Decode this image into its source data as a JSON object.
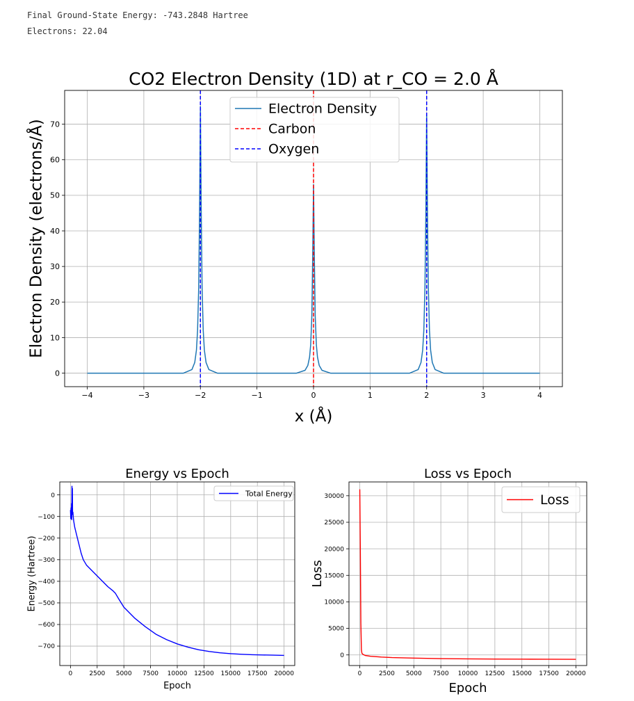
{
  "output": {
    "energy_line": "Final Ground-State Energy: -743.2848 Hartree",
    "electrons_line": "Electrons: 22.04"
  },
  "colors": {
    "density": "#1f77b4",
    "carbon": "#ff0000",
    "oxygen": "#0000ff",
    "energy": "#0000ff",
    "loss": "#ff0000",
    "grid": "#b0b0b0"
  },
  "chart_data": [
    {
      "type": "line",
      "title": "CO2 Electron Density (1D) at r_CO = 2.0 Å",
      "xlabel": "x (Å)",
      "ylabel": "Electron Density (electrons/Å)",
      "xlim": [
        -4.4,
        4.4
      ],
      "ylim": [
        -3.8,
        79.5
      ],
      "xticks": [
        -4,
        -3,
        -2,
        -1,
        0,
        1,
        2,
        3,
        4
      ],
      "xtick_labels": [
        "−4",
        "−3",
        "−2",
        "−1",
        "0",
        "1",
        "2",
        "3",
        "4"
      ],
      "yticks": [
        0,
        10,
        20,
        30,
        40,
        50,
        60,
        70
      ],
      "ytick_labels": [
        "0",
        "10",
        "20",
        "30",
        "40",
        "50",
        "60",
        "70"
      ],
      "grid": true,
      "legend_position": "upper-center",
      "series": [
        {
          "name": "Electron Density",
          "style": "solid",
          "x": [
            -4,
            -2.3,
            -2.15,
            -2.1,
            -2.07,
            -2.05,
            -2.03,
            -2.015,
            -2,
            -1.985,
            -1.97,
            -1.95,
            -1.93,
            -1.9,
            -1.85,
            -1.7,
            -0.3,
            -0.15,
            -0.1,
            -0.07,
            -0.05,
            -0.03,
            -0.015,
            0,
            0.015,
            0.03,
            0.05,
            0.07,
            0.1,
            0.15,
            0.3,
            1.7,
            1.85,
            1.9,
            1.93,
            1.95,
            1.97,
            1.985,
            2,
            2.015,
            2.03,
            2.05,
            2.07,
            2.1,
            2.15,
            2.3,
            4
          ],
          "y": [
            0,
            0,
            1,
            3,
            6.5,
            12,
            24,
            45,
            75,
            45,
            24,
            12,
            6.5,
            3,
            1,
            0,
            0,
            0.8,
            2.2,
            4.5,
            8,
            16,
            32,
            53,
            32,
            16,
            8,
            4.5,
            2.2,
            0.8,
            0,
            0,
            1,
            3,
            6.5,
            12,
            24,
            44,
            73,
            44,
            24,
            12,
            6.5,
            3,
            1,
            0,
            0
          ]
        },
        {
          "name": "Carbon",
          "style": "dashed",
          "vline": 0
        },
        {
          "name": "Oxygen",
          "style": "dashed",
          "vlines": [
            -2,
            2
          ]
        }
      ]
    },
    {
      "type": "line",
      "title": "Energy vs Epoch",
      "xlabel": "Epoch",
      "ylabel": "Energy (Hartree)",
      "xlim": [
        -1000,
        21000
      ],
      "ylim": [
        -790,
        60
      ],
      "xticks": [
        0,
        2500,
        5000,
        7500,
        10000,
        12500,
        15000,
        17500,
        20000
      ],
      "xtick_labels": [
        "0",
        "2500",
        "5000",
        "7500",
        "10000",
        "12500",
        "15000",
        "17500",
        "20000"
      ],
      "yticks": [
        0,
        -100,
        -200,
        -300,
        -400,
        -500,
        -600,
        -700
      ],
      "ytick_labels": [
        "0",
        "−100",
        "−200",
        "−300",
        "−400",
        "−500",
        "−600",
        "−700"
      ],
      "grid": true,
      "legend_position": "upper-right",
      "series": [
        {
          "name": "Total Energy",
          "x": [
            0,
            30,
            60,
            80,
            100,
            120,
            140,
            160,
            180,
            200,
            230,
            260,
            300,
            400,
            600,
            800,
            1000,
            1200,
            1500,
            2000,
            2500,
            3000,
            3500,
            4000,
            4200,
            4500,
            5000,
            6000,
            7000,
            8000,
            9000,
            10000,
            11000,
            12000,
            13000,
            14000,
            15000,
            16000,
            17000,
            18000,
            19000,
            20000
          ],
          "y": [
            -70,
            -110,
            -60,
            -100,
            -40,
            -115,
            40,
            10,
            30,
            -90,
            -80,
            -100,
            -120,
            -150,
            -190,
            -230,
            -270,
            -300,
            -325,
            -350,
            -375,
            -400,
            -425,
            -445,
            -455,
            -480,
            -520,
            -570,
            -610,
            -645,
            -670,
            -690,
            -705,
            -717,
            -725,
            -731,
            -735,
            -738,
            -740,
            -741,
            -742,
            -743
          ]
        }
      ]
    },
    {
      "type": "line",
      "title": "Loss vs Epoch",
      "xlabel": "Epoch",
      "ylabel": "Loss",
      "xlim": [
        -1000,
        21000
      ],
      "ylim": [
        -2000,
        32600
      ],
      "xticks": [
        0,
        2500,
        5000,
        7500,
        10000,
        12500,
        15000,
        17500,
        20000
      ],
      "xtick_labels": [
        "0",
        "2500",
        "5000",
        "7500",
        "10000",
        "12500",
        "15000",
        "17500",
        "20000"
      ],
      "yticks": [
        0,
        5000,
        10000,
        15000,
        20000,
        25000,
        30000
      ],
      "ytick_labels": [
        "0",
        "5000",
        "10000",
        "15000",
        "20000",
        "25000",
        "30000"
      ],
      "grid": true,
      "legend_position": "upper-right",
      "series": [
        {
          "name": "Loss",
          "x": [
            0,
            50,
            100,
            150,
            200,
            300,
            500,
            1000,
            2000,
            3000,
            5000,
            7500,
            10000,
            12500,
            15000,
            17500,
            20000
          ],
          "y": [
            31200,
            20000,
            6000,
            1000,
            300,
            100,
            -100,
            -250,
            -400,
            -500,
            -600,
            -700,
            -750,
            -780,
            -800,
            -815,
            -830
          ]
        }
      ]
    }
  ]
}
